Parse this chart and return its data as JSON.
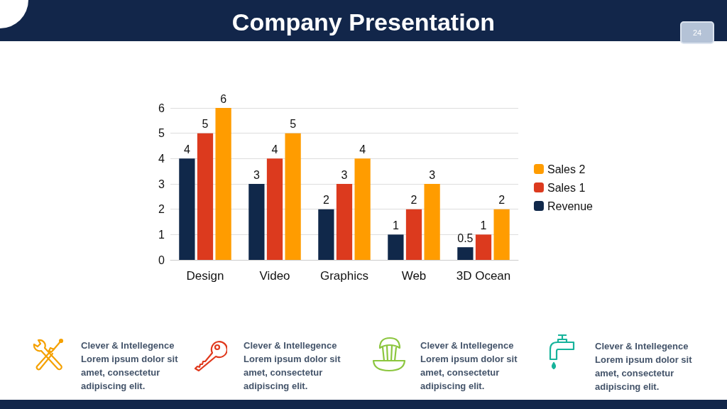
{
  "chart_data": {
    "type": "bar",
    "title": "Company Presentation",
    "categories": [
      "Design",
      "Video",
      "Graphics",
      "Web",
      "3D Ocean"
    ],
    "series": [
      {
        "name": "Revenue",
        "color": "#10284a",
        "values": [
          4,
          3,
          2,
          1,
          0.5
        ]
      },
      {
        "name": "Sales 1",
        "color": "#dc3a1e",
        "values": [
          5,
          4,
          3,
          2,
          1
        ]
      },
      {
        "name": "Sales 2",
        "color": "#ff9c00",
        "values": [
          6,
          5,
          4,
          3,
          2
        ]
      }
    ],
    "ylim": [
      0,
      6
    ],
    "yticks": [
      0,
      1,
      2,
      3,
      4,
      5,
      6
    ],
    "grid": "y",
    "legend": "right",
    "data_labels": true,
    "annotations": [
      "24",
      "Clever & Intellegence",
      "Lorem ipsum dolor sit amet, consectetur adipiscing elit.",
      "Clever & Intellegence",
      "Lorem ipsum dolor sit amet, consectetur adipiscing elit.",
      "Clever & Intellegence",
      "Lorem ipsum dolor sit amet, consectetur adipiscing elit.",
      "Clever & Intellegence",
      "Lorem ipsum dolor sit amet, consectetur adipiscing elit."
    ]
  }
}
